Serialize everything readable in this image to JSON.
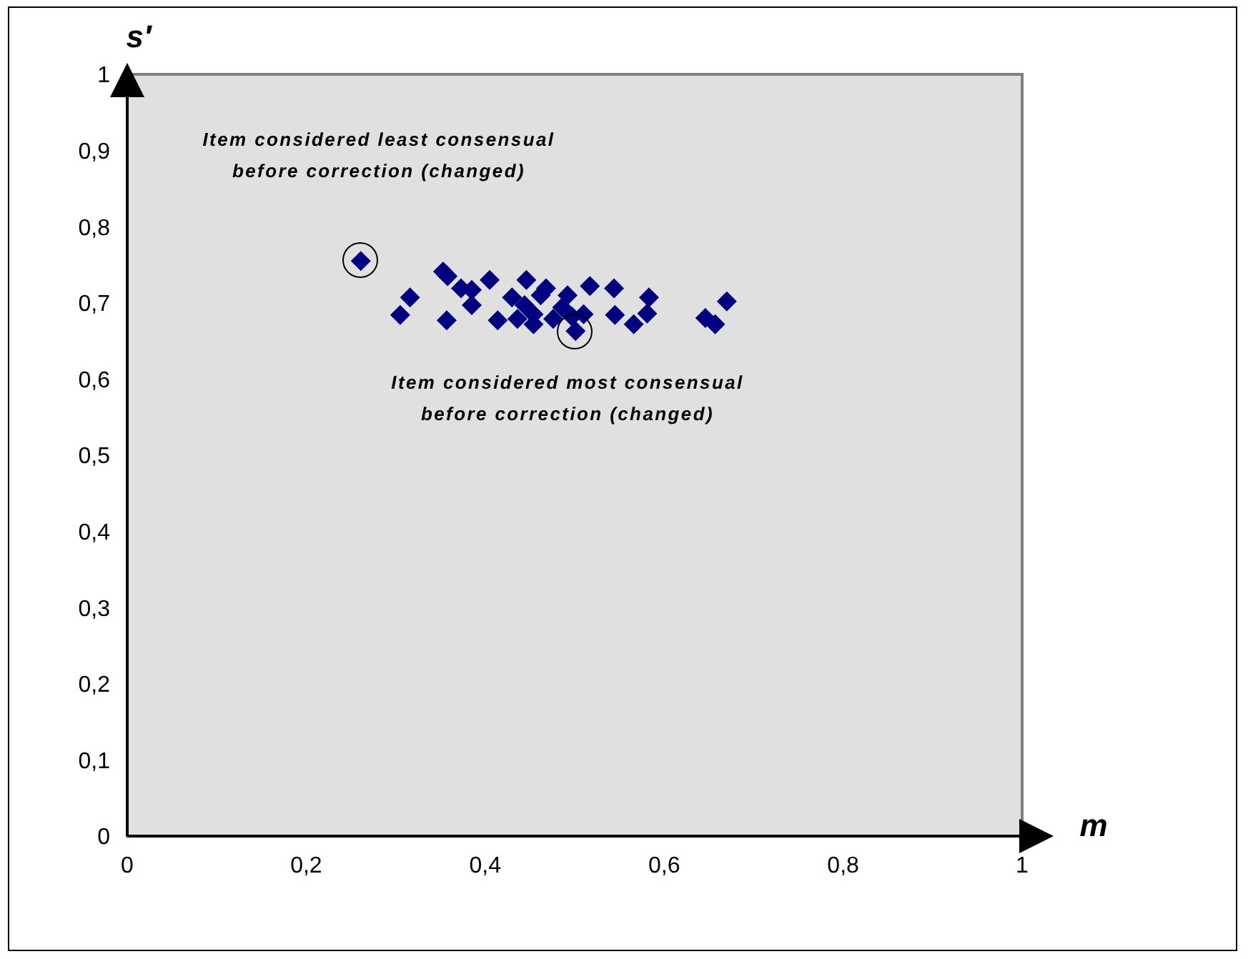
{
  "chart_data": {
    "type": "scatter",
    "xlabel": "m",
    "ylabel": "s′",
    "x": [
      0.261,
      0.353,
      0.358,
      0.373,
      0.385,
      0.405,
      0.316,
      0.305,
      0.357,
      0.385,
      0.414,
      0.43,
      0.446,
      0.436,
      0.444,
      0.454,
      0.454,
      0.468,
      0.462,
      0.476,
      0.492,
      0.486,
      0.497,
      0.501,
      0.51,
      0.517,
      0.544,
      0.545,
      0.566,
      0.581,
      0.583,
      0.67,
      0.646,
      0.657
    ],
    "series": [
      {
        "color": "#000080",
        "values": [
          0.755,
          0.741,
          0.735,
          0.719,
          0.717,
          0.73,
          0.707,
          0.684,
          0.677,
          0.697,
          0.677,
          0.707,
          0.73,
          0.679,
          0.697,
          0.685,
          0.672,
          0.719,
          0.71,
          0.679,
          0.71,
          0.694,
          0.682,
          0.663,
          0.685,
          0.722,
          0.719,
          0.684,
          0.672,
          0.686,
          0.707,
          0.702,
          0.68,
          0.672
        ]
      }
    ],
    "marker": "diamond",
    "grid": false,
    "legend": false,
    "xlim": [
      0,
      1
    ],
    "ylim": [
      0,
      1
    ],
    "xticks": [
      0,
      {
        "value": 0.2,
        "label": "0,2"
      },
      {
        "value": 0.4,
        "label": "0,4"
      },
      {
        "value": 0.6,
        "label": "0,6"
      },
      {
        "value": 0.8,
        "label": "0,8"
      },
      1
    ],
    "yticks": [
      0,
      {
        "value": 0.1,
        "label": "0,1"
      },
      {
        "value": 0.2,
        "label": "0,2"
      },
      {
        "value": 0.3,
        "label": "0,3"
      },
      {
        "value": 0.4,
        "label": "0,4"
      },
      {
        "value": 0.5,
        "label": "0,5"
      },
      {
        "value": 0.6,
        "label": "0,6"
      },
      {
        "value": 0.7,
        "label": "0,7"
      },
      {
        "value": 0.8,
        "label": "0,8"
      },
      {
        "value": 0.9,
        "label": "0,9"
      },
      1
    ],
    "annotations": [
      "Item considered least consensual\nbefore correction (changed)",
      "Item considered most consensual\nbefore correction (changed)"
    ]
  }
}
